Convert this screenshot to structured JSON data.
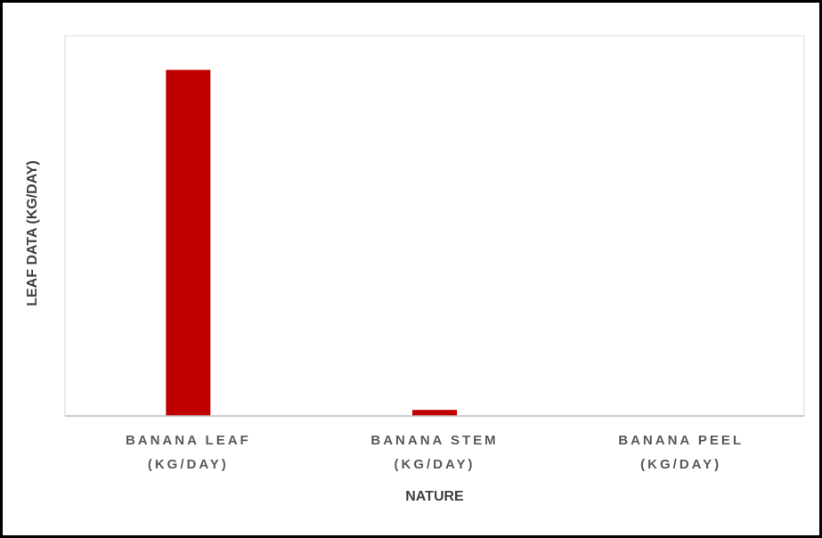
{
  "chart_data": {
    "type": "bar",
    "x_label": "NATURE",
    "y_label": "LEAF DATA (KG/DAY)",
    "categories": [
      "BANANA LEAF\n(KG/DAY)",
      "BANANA STEM\n(KG/DAY)",
      "BANANA PEEL\n(KG/DAY)"
    ],
    "values": [
      91,
      1.6,
      0
    ],
    "color": "#c00000",
    "ylim": [
      0,
      100
    ]
  }
}
